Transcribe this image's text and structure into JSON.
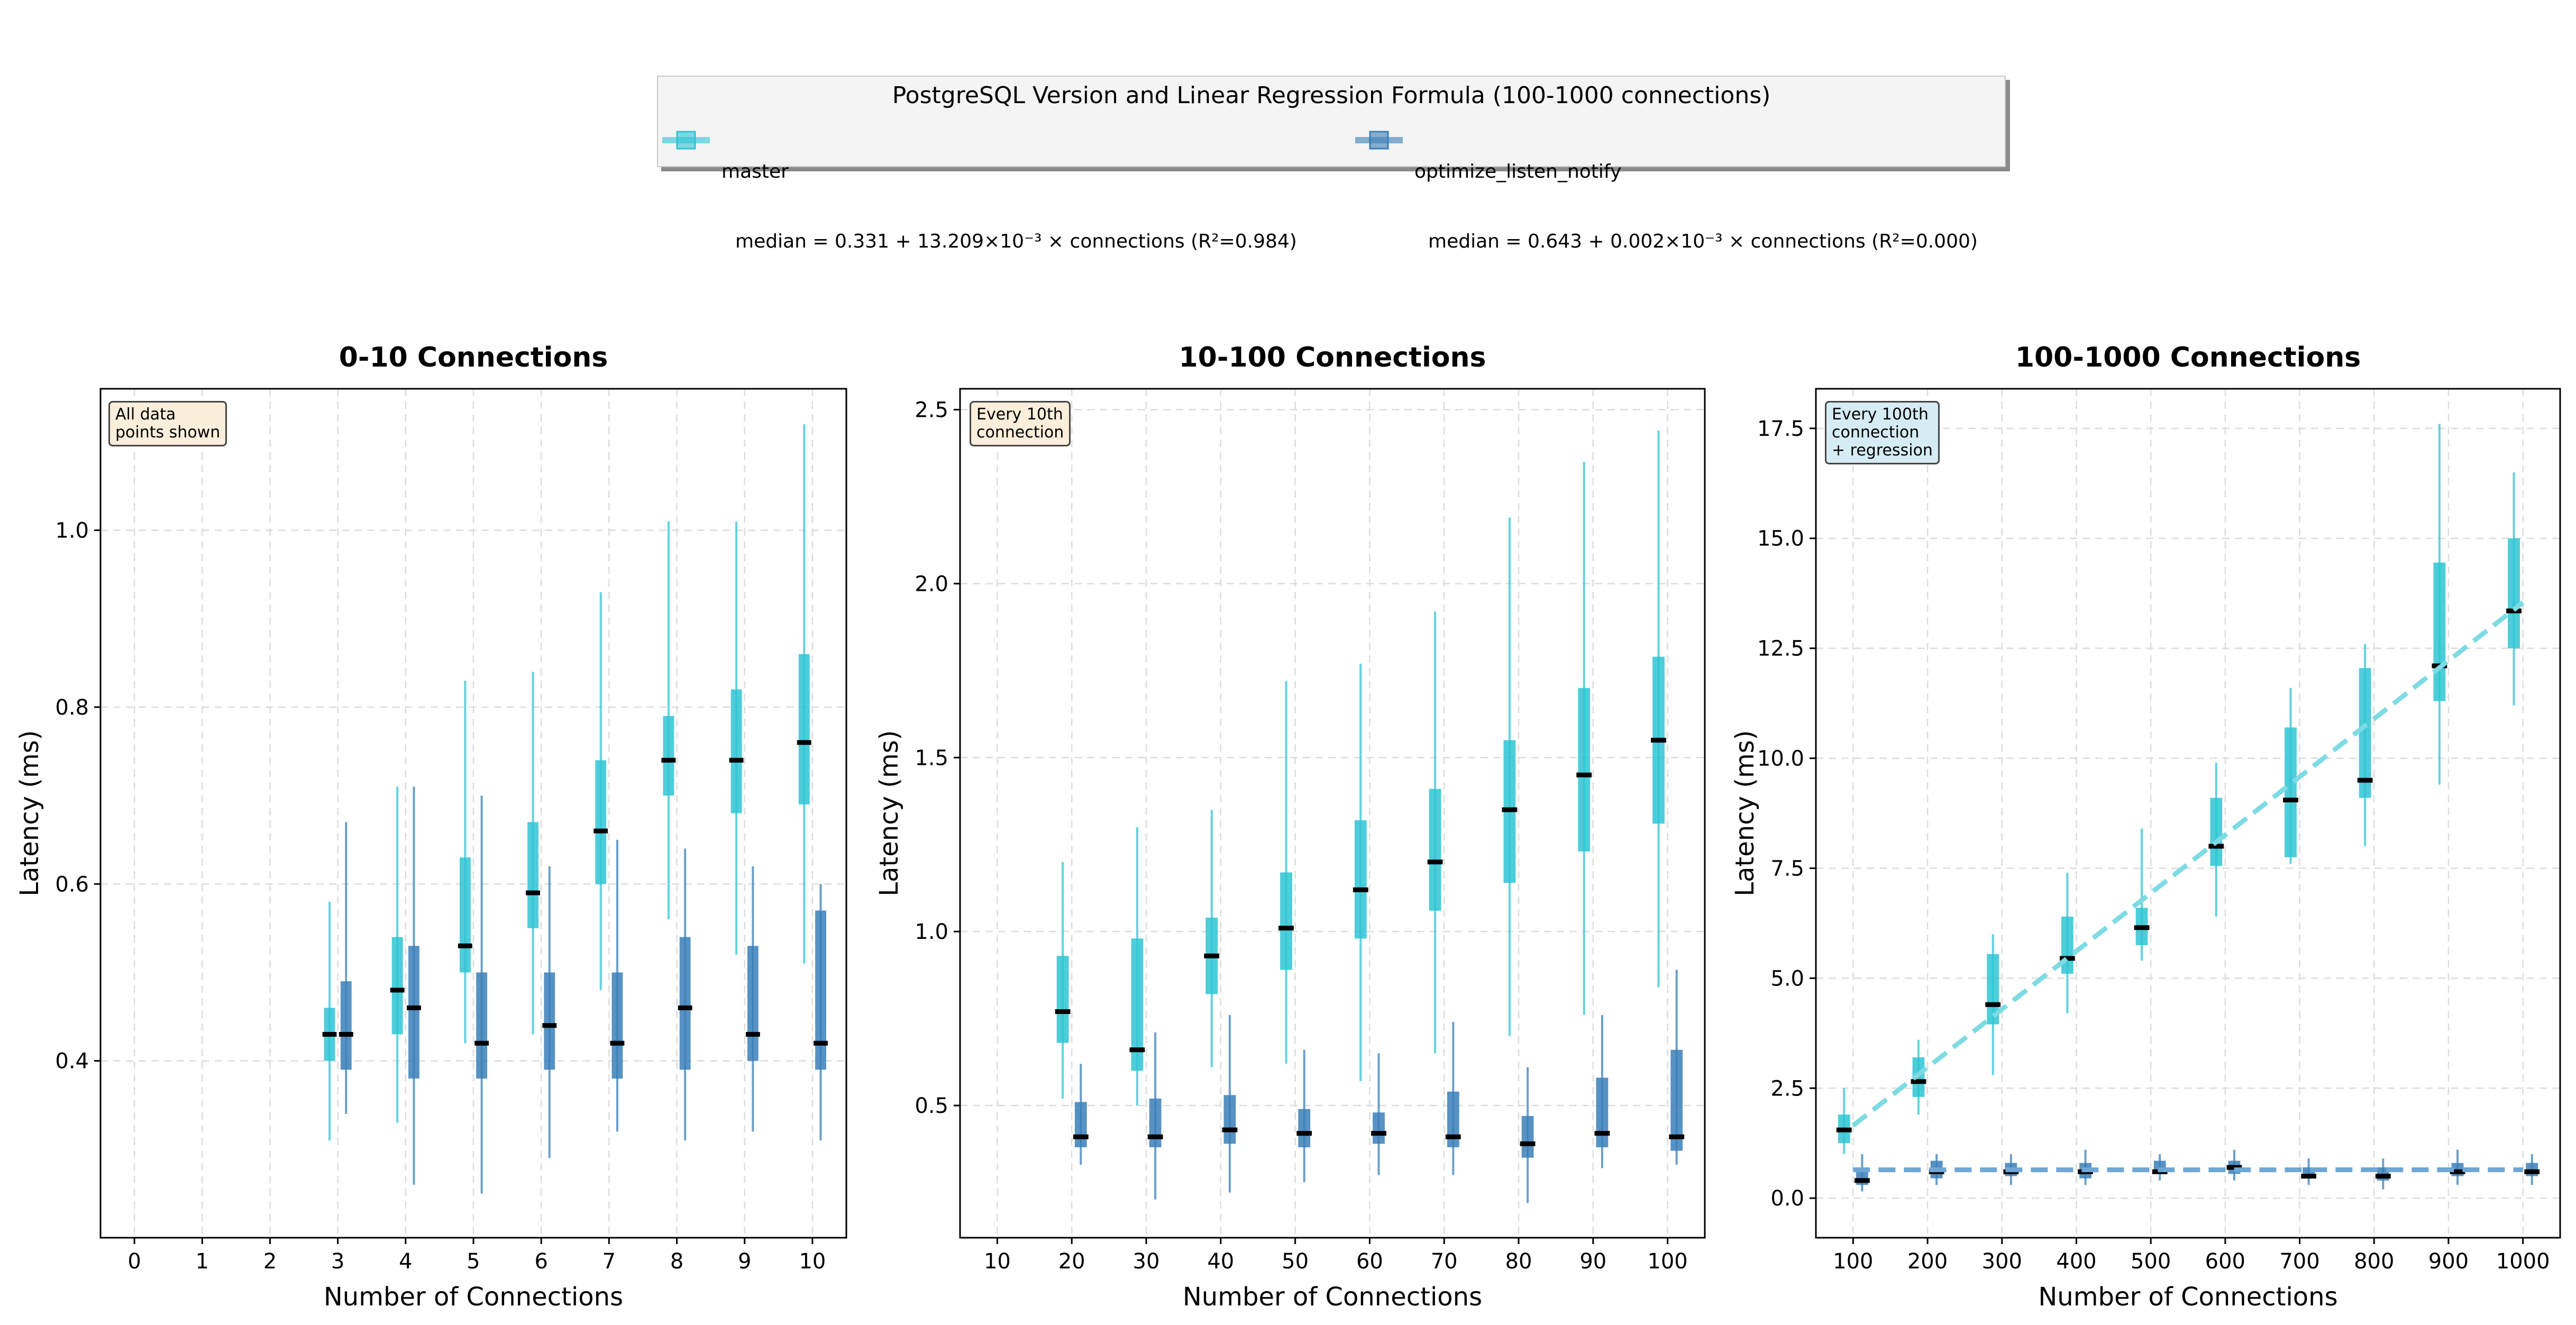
{
  "legend": {
    "title": "PostgreSQL Version and Linear Regression Formula (100-1000 connections)",
    "entries": [
      {
        "name": "master",
        "formula": "median = 0.331 + 13.209×10⁻³ × connections (R²=0.984)",
        "color": "#2ec4d4"
      },
      {
        "name": "optimize_listen_notify",
        "formula": "median = 0.643 + 0.002×10⁻³ × connections (R²=0.000)",
        "color": "#3a7fb8"
      }
    ]
  },
  "colors": {
    "master": "#2ec4d4",
    "optimize": "#3a7fb8",
    "median": "#000000"
  },
  "chart_data": [
    {
      "type": "box",
      "title": "0-10 Connections",
      "xlabel": "Number of Connections",
      "ylabel": "Latency (ms)",
      "xticks": [
        0,
        1,
        2,
        3,
        4,
        5,
        6,
        7,
        8,
        9,
        10
      ],
      "xlim": [
        -0.5,
        10.5
      ],
      "ylim": [
        0.2,
        1.16
      ],
      "yticks": [
        0.4,
        0.6,
        0.8,
        1.0
      ],
      "yticklabels": [
        "0.4",
        "0.6",
        "0.8",
        "1.0"
      ],
      "grid": true,
      "note": "All data\npoints shown",
      "note_color": "#fbeeda",
      "series": [
        {
          "name": "master",
          "x": [
            3,
            4,
            5,
            6,
            7,
            8,
            9,
            10
          ],
          "median": [
            0.43,
            0.48,
            0.53,
            0.59,
            0.66,
            0.74,
            0.74,
            0.76
          ],
          "q1": [
            0.4,
            0.43,
            0.5,
            0.55,
            0.6,
            0.7,
            0.68,
            0.69
          ],
          "q3": [
            0.46,
            0.54,
            0.63,
            0.67,
            0.74,
            0.79,
            0.82,
            0.86
          ],
          "min": [
            0.31,
            0.33,
            0.42,
            0.43,
            0.48,
            0.56,
            0.52,
            0.51
          ],
          "max": [
            0.58,
            0.71,
            0.83,
            0.84,
            0.93,
            1.01,
            1.01,
            1.12
          ]
        },
        {
          "name": "optimize_listen_notify",
          "x": [
            3,
            4,
            5,
            6,
            7,
            8,
            9,
            10
          ],
          "median": [
            0.43,
            0.46,
            0.42,
            0.44,
            0.42,
            0.46,
            0.43,
            0.42
          ],
          "q1": [
            0.39,
            0.38,
            0.38,
            0.39,
            0.38,
            0.39,
            0.4,
            0.39
          ],
          "q3": [
            0.49,
            0.53,
            0.5,
            0.5,
            0.5,
            0.54,
            0.53,
            0.57
          ],
          "min": [
            0.34,
            0.26,
            0.25,
            0.29,
            0.32,
            0.31,
            0.32,
            0.31
          ],
          "max": [
            0.67,
            0.71,
            0.7,
            0.62,
            0.65,
            0.64,
            0.62,
            0.6
          ]
        }
      ]
    },
    {
      "type": "box",
      "title": "10-100 Connections",
      "xlabel": "Number of Connections",
      "ylabel": "Latency (ms)",
      "xticks": [
        10,
        20,
        30,
        40,
        50,
        60,
        70,
        80,
        90,
        100
      ],
      "xlim": [
        5,
        105
      ],
      "ylim": [
        0.12,
        2.56
      ],
      "yticks": [
        0.5,
        1.0,
        1.5,
        2.0,
        2.5
      ],
      "yticklabels": [
        "0.5",
        "1.0",
        "1.5",
        "2.0",
        "2.5"
      ],
      "grid": true,
      "note": "Every 10th\nconnection",
      "note_color": "#fbeeda",
      "series": [
        {
          "name": "master",
          "x": [
            20,
            30,
            40,
            50,
            60,
            70,
            80,
            90,
            100
          ],
          "median": [
            0.77,
            0.66,
            0.93,
            1.01,
            1.12,
            1.2,
            1.35,
            1.45,
            1.55
          ],
          "q1": [
            0.68,
            0.6,
            0.82,
            0.89,
            0.98,
            1.06,
            1.14,
            1.23,
            1.31
          ],
          "q3": [
            0.93,
            0.98,
            1.04,
            1.17,
            1.32,
            1.41,
            1.55,
            1.7,
            1.79
          ],
          "min": [
            0.52,
            0.5,
            0.61,
            0.62,
            0.57,
            0.65,
            0.7,
            0.76,
            0.84
          ],
          "max": [
            1.2,
            1.3,
            1.35,
            1.72,
            1.77,
            1.92,
            2.19,
            2.35,
            2.44
          ]
        },
        {
          "name": "optimize_listen_notify",
          "x": [
            20,
            30,
            40,
            50,
            60,
            70,
            80,
            90,
            100
          ],
          "median": [
            0.41,
            0.41,
            0.43,
            0.42,
            0.42,
            0.41,
            0.39,
            0.42,
            0.41
          ],
          "q1": [
            0.38,
            0.38,
            0.39,
            0.38,
            0.39,
            0.38,
            0.35,
            0.38,
            0.37
          ],
          "q3": [
            0.51,
            0.52,
            0.53,
            0.49,
            0.48,
            0.54,
            0.47,
            0.58,
            0.66
          ],
          "min": [
            0.33,
            0.23,
            0.25,
            0.28,
            0.3,
            0.3,
            0.22,
            0.32,
            0.33
          ],
          "max": [
            0.62,
            0.71,
            0.76,
            0.66,
            0.65,
            0.74,
            0.61,
            0.76,
            0.89
          ]
        }
      ]
    },
    {
      "type": "box",
      "title": "100-1000 Connections",
      "xlabel": "Number of Connections",
      "ylabel": "Latency (ms)",
      "xticks": [
        100,
        200,
        300,
        400,
        500,
        600,
        700,
        800,
        900,
        1000
      ],
      "xlim": [
        50,
        1050
      ],
      "ylim": [
        -0.9,
        18.4
      ],
      "yticks": [
        0.0,
        2.5,
        5.0,
        7.5,
        10.0,
        12.5,
        15.0,
        17.5
      ],
      "yticklabels": [
        "0.0",
        "2.5",
        "5.0",
        "7.5",
        "10.0",
        "12.5",
        "15.0",
        "17.5"
      ],
      "grid": true,
      "note": "Every 100th\nconnection\n+ regression",
      "note_color": "#d6ecf4",
      "series": [
        {
          "name": "master",
          "x": [
            100,
            200,
            300,
            400,
            500,
            600,
            700,
            800,
            900,
            1000
          ],
          "median": [
            1.55,
            2.65,
            4.4,
            5.45,
            6.15,
            8.0,
            9.05,
            9.5,
            12.1,
            13.35
          ],
          "q1": [
            1.25,
            2.3,
            3.95,
            5.1,
            5.75,
            7.55,
            7.75,
            9.1,
            11.3,
            12.5
          ],
          "q3": [
            1.9,
            3.2,
            5.55,
            6.4,
            6.6,
            9.1,
            10.7,
            12.05,
            14.45,
            15.0
          ],
          "min": [
            1.0,
            1.9,
            2.8,
            4.2,
            5.4,
            6.4,
            7.6,
            8.0,
            9.4,
            11.2
          ],
          "max": [
            2.5,
            3.6,
            6.0,
            7.4,
            8.4,
            9.9,
            11.6,
            12.6,
            17.6,
            16.5
          ]
        },
        {
          "name": "optimize_listen_notify",
          "x": [
            100,
            200,
            300,
            400,
            500,
            600,
            700,
            800,
            900,
            1000
          ],
          "median": [
            0.4,
            0.6,
            0.6,
            0.6,
            0.6,
            0.7,
            0.5,
            0.5,
            0.6,
            0.6
          ],
          "q1": [
            0.3,
            0.45,
            0.5,
            0.45,
            0.55,
            0.55,
            0.45,
            0.4,
            0.5,
            0.5
          ],
          "q3": [
            0.7,
            0.85,
            0.8,
            0.8,
            0.85,
            0.85,
            0.7,
            0.7,
            0.8,
            0.8
          ],
          "min": [
            0.15,
            0.3,
            0.3,
            0.3,
            0.4,
            0.4,
            0.3,
            0.2,
            0.3,
            0.3
          ],
          "max": [
            1.0,
            1.0,
            1.0,
            1.1,
            1.0,
            1.1,
            0.9,
            0.9,
            1.1,
            1.0
          ]
        }
      ],
      "regression": [
        {
          "name": "master",
          "intercept": 0.331,
          "slope": 0.013209,
          "x": [
            100,
            1000
          ]
        },
        {
          "name": "optimize_listen_notify",
          "intercept": 0.643,
          "slope": 2e-06,
          "x": [
            100,
            1000
          ]
        }
      ]
    }
  ]
}
